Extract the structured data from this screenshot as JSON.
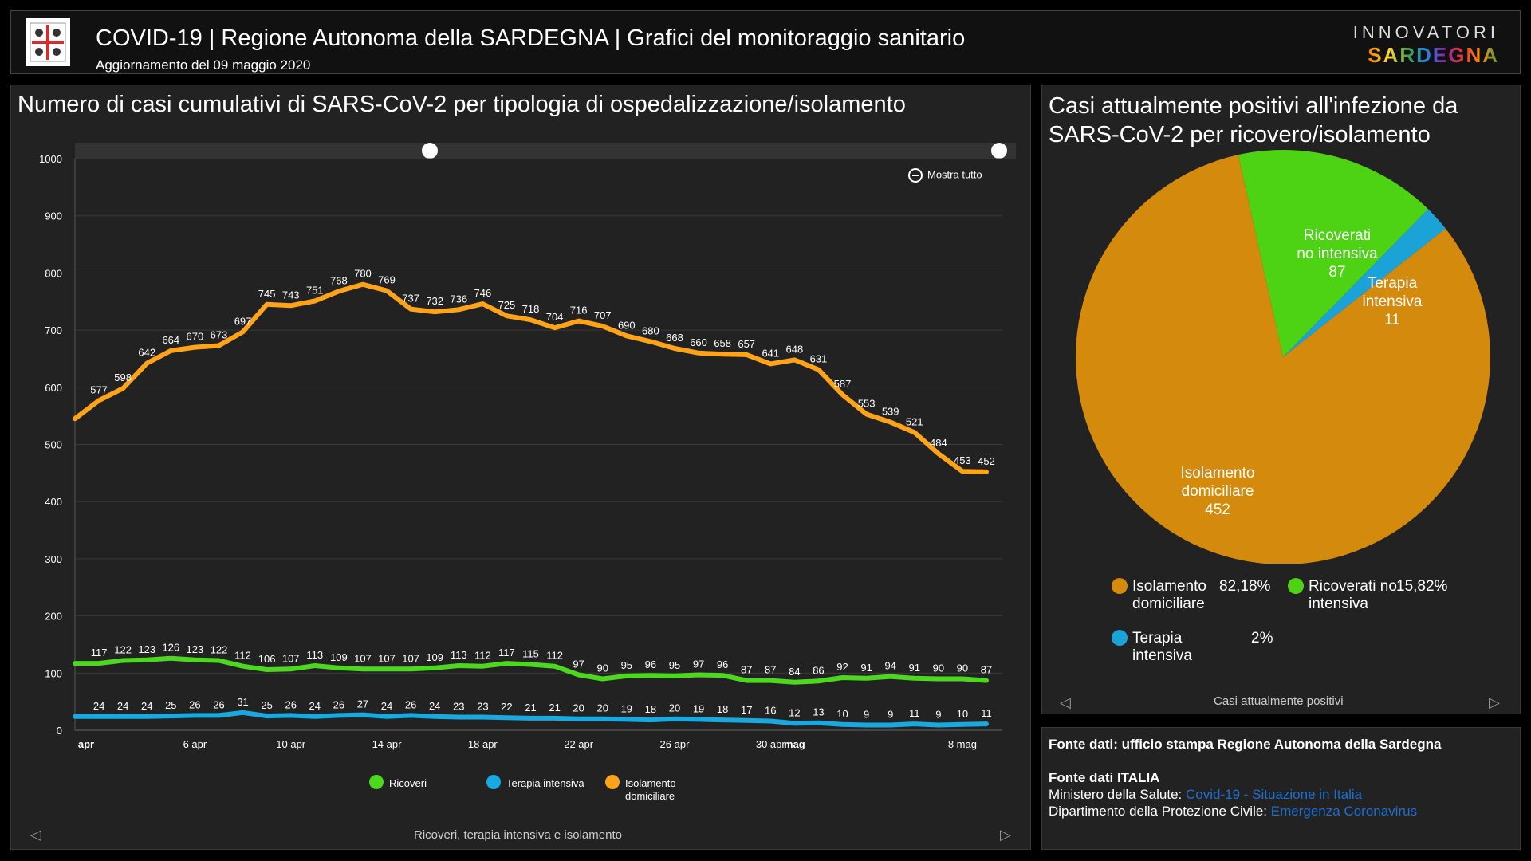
{
  "header": {
    "title": "COVID-19 | Regione Autonoma della SARDEGNA | Grafici del monitoraggio sanitario",
    "subtitle": "Aggiornamento del 09 maggio 2020",
    "brand_top": "INNOVATORI",
    "brand_bottom": "SARDEGNA"
  },
  "line_panel": {
    "title": "Numero di casi cumulativi di SARS-CoV-2 per tipologia di ospedalizzazione/isolamento",
    "zoom_label": "Mostra tutto",
    "nav_label": "Ricoveri, terapia intensiva e isolamento"
  },
  "pie_panel": {
    "title": "Casi attualmente positivi all'infezione da SARS-CoV-2 per ricovero/isolamento",
    "nav_label": "Casi attualmente positivi"
  },
  "source": {
    "line1": "Fonte dati: ufficio stampa Regione Autonoma della Sardegna",
    "line2": "Fonte dati ITALIA",
    "line3_prefix": "Ministero della Salute:",
    "line3_link": "Covid-19 - Situazione in Italia",
    "line4_prefix": "Dipartimento della Protezione Civile:",
    "line4_link": "Emergenza Coronavirus"
  },
  "colors": {
    "isolamento": "#ffa31a",
    "ricoveri": "#4dd820",
    "terapia": "#17a9e0",
    "pie_isolamento": "#d48a0c",
    "pie_ricoveri": "#4dd214",
    "pie_terapia": "#1ba3d8"
  },
  "chart_data": [
    {
      "type": "line",
      "title": "Numero di casi cumulativi di SARS-CoV-2 per tipologia di ospedalizzazione/isolamento",
      "ylim": [
        0,
        1000
      ],
      "yticks": [
        0,
        100,
        200,
        300,
        400,
        500,
        600,
        700,
        800,
        900,
        1000
      ],
      "x": [
        "2020-04-01",
        "2020-04-02",
        "2020-04-03",
        "2020-04-04",
        "2020-04-05",
        "2020-04-06",
        "2020-04-07",
        "2020-04-08",
        "2020-04-09",
        "2020-04-10",
        "2020-04-11",
        "2020-04-12",
        "2020-04-13",
        "2020-04-14",
        "2020-04-15",
        "2020-04-16",
        "2020-04-17",
        "2020-04-18",
        "2020-04-19",
        "2020-04-20",
        "2020-04-21",
        "2020-04-22",
        "2020-04-23",
        "2020-04-24",
        "2020-04-25",
        "2020-04-26",
        "2020-04-27",
        "2020-04-28",
        "2020-04-29",
        "2020-04-30",
        "2020-05-01",
        "2020-05-02",
        "2020-05-03",
        "2020-05-04",
        "2020-05-05",
        "2020-05-06",
        "2020-05-07",
        "2020-05-08",
        "2020-05-09"
      ],
      "xtick_labels": [
        {
          "index": 0,
          "label": "apr"
        },
        {
          "index": 5,
          "label": "6 apr"
        },
        {
          "index": 9,
          "label": "10 apr"
        },
        {
          "index": 13,
          "label": "14 apr"
        },
        {
          "index": 17,
          "label": "18 apr"
        },
        {
          "index": 21,
          "label": "22 apr"
        },
        {
          "index": 25,
          "label": "26 apr"
        },
        {
          "index": 29,
          "label": "30 apr"
        },
        {
          "index": 30,
          "label": "mag"
        },
        {
          "index": 37,
          "label": "8 mag"
        }
      ],
      "series": [
        {
          "name": "Isolamento domiciliare",
          "values": [
            545,
            577,
            598,
            642,
            664,
            670,
            673,
            697,
            745,
            743,
            751,
            768,
            780,
            769,
            737,
            732,
            736,
            746,
            725,
            718,
            704,
            716,
            707,
            690,
            680,
            668,
            660,
            658,
            657,
            641,
            648,
            631,
            587,
            553,
            539,
            521,
            484,
            453,
            452
          ],
          "labels": [
            null,
            577,
            598,
            642,
            664,
            670,
            673,
            697,
            745,
            743,
            751,
            768,
            780,
            769,
            737,
            732,
            736,
            746,
            725,
            718,
            704,
            716,
            707,
            690,
            680,
            668,
            660,
            658,
            657,
            641,
            648,
            631,
            587,
            553,
            539,
            521,
            484,
            453,
            452
          ]
        },
        {
          "name": "Ricoveri",
          "values": [
            117,
            117,
            122,
            123,
            126,
            123,
            122,
            112,
            106,
            107,
            113,
            109,
            107,
            107,
            107,
            109,
            113,
            112,
            117,
            115,
            112,
            97,
            90,
            95,
            96,
            95,
            97,
            96,
            87,
            87,
            84,
            86,
            92,
            91,
            94,
            91,
            90,
            90,
            87
          ],
          "labels": [
            null,
            117,
            122,
            123,
            126,
            123,
            122,
            112,
            106,
            107,
            113,
            109,
            107,
            107,
            107,
            109,
            113,
            112,
            117,
            115,
            112,
            97,
            90,
            95,
            96,
            95,
            97,
            96,
            87,
            87,
            84,
            86,
            92,
            91,
            94,
            91,
            90,
            90,
            87
          ]
        },
        {
          "name": "Terapia intensiva",
          "values": [
            24,
            24,
            24,
            24,
            25,
            26,
            26,
            31,
            25,
            26,
            24,
            26,
            27,
            24,
            26,
            24,
            23,
            23,
            22,
            21,
            21,
            20,
            20,
            19,
            18,
            20,
            19,
            18,
            17,
            16,
            12,
            13,
            10,
            9,
            9,
            11,
            9,
            10,
            11
          ],
          "labels": [
            null,
            24,
            24,
            24,
            25,
            26,
            26,
            31,
            25,
            26,
            24,
            26,
            27,
            24,
            26,
            24,
            23,
            23,
            22,
            21,
            21,
            20,
            20,
            19,
            18,
            20,
            19,
            18,
            17,
            16,
            12,
            13,
            10,
            9,
            9,
            11,
            9,
            10,
            11
          ]
        }
      ],
      "legend": [
        "Ricoveri",
        "Terapia intensiva",
        "Isolamento domiciliare"
      ]
    },
    {
      "type": "pie",
      "title": "Casi attualmente positivi all'infezione da SARS-CoV-2 per ricovero/isolamento",
      "slices": [
        {
          "name": "Ricoverati no intensiva",
          "value": 87,
          "percent": "15,82%"
        },
        {
          "name": "Terapia intensiva",
          "value": 11,
          "percent": "2%"
        },
        {
          "name": "Isolamento domiciliare",
          "value": 452,
          "percent": "82,18%"
        }
      ]
    }
  ]
}
